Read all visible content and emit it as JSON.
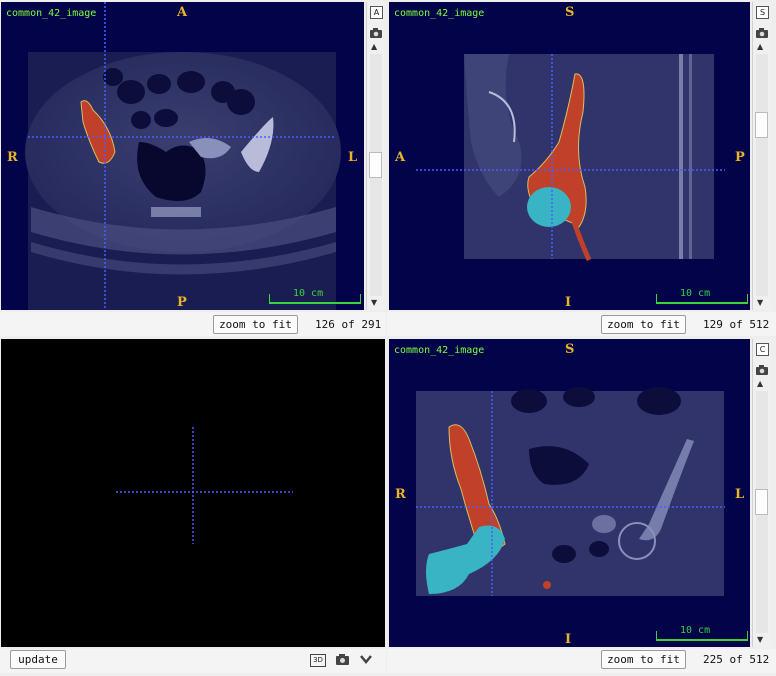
{
  "viewers": {
    "axial": {
      "image_name": "common_42_image",
      "orient_top": "A",
      "orient_bottom": "P",
      "orient_left": "R",
      "orient_right": "L",
      "scale_label": "10 cm",
      "zoom_label": "zoom to fit",
      "slice_text": "126 of 291",
      "view_button": "A",
      "slice_fraction": 0.43
    },
    "sagittal": {
      "image_name": "common_42_image",
      "orient_top": "S",
      "orient_bottom": "I",
      "orient_left": "A",
      "orient_right": "P",
      "scale_label": "10 cm",
      "zoom_label": "zoom to fit",
      "slice_text": "129 of 512",
      "view_button": "S",
      "slice_fraction": 0.25
    },
    "coronal": {
      "image_name": "common_42_image",
      "orient_top": "S",
      "orient_bottom": "I",
      "orient_left": "R",
      "orient_right": "L",
      "scale_label": "10 cm",
      "zoom_label": "zoom to fit",
      "slice_text": "225 of 512",
      "view_button": "C",
      "slice_fraction": 0.44
    }
  },
  "three_d": {
    "update_label": "update",
    "icon_3d": "3D"
  },
  "colors": {
    "crosshair": "#4a5cff",
    "segment_red": "#c0402a",
    "segment_cyan": "#38b4c4",
    "label_green": "#7cff3a",
    "orient_orange": "#e8b428"
  },
  "icons": [
    "camera-icon",
    "chevron-down-icon",
    "scroll-up-icon",
    "scroll-down-icon",
    "3d-icon"
  ]
}
